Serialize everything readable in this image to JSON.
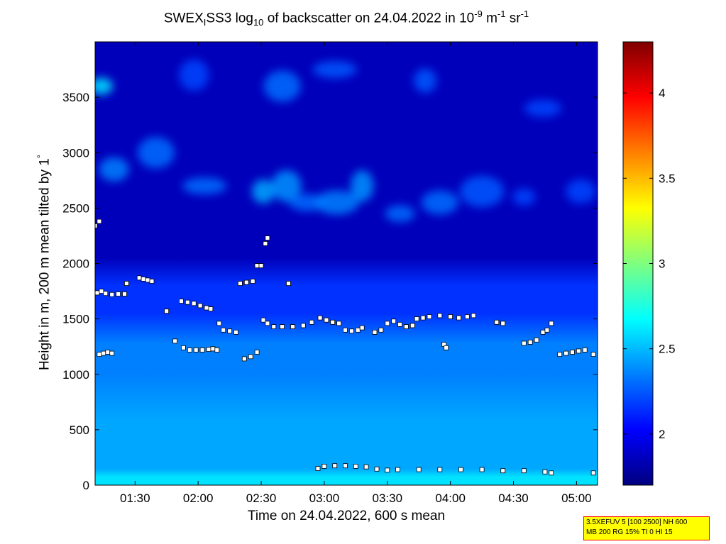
{
  "header": {
    "title_a": "SWEX",
    "title_sub1": "I",
    "title_b": "SS3 log",
    "title_sub2": "10",
    "title_c": " of backscatter on 24.04.2022 in 10",
    "title_sup1": "-9",
    "title_d": " m",
    "title_sup2": "-1",
    "title_e": " sr",
    "title_sup3": "-1"
  },
  "axes": {
    "ylabel_a": "Height in m, 200 m mean tilted by 1",
    "ylabel_deg": "°",
    "xlabel": "Time on 24.04.2022, 600 s mean"
  },
  "info_box": {
    "line1": "3.5XEFUV 5 [100 2500] NH 600",
    "line2": "MB 200 RG 15% TI 0 HI 15"
  },
  "colors": {
    "colormap": "jet",
    "frame": "#000000",
    "info_bg": "#ffff00",
    "info_border": "#ff0000"
  },
  "chart_data": {
    "type": "heatmap",
    "title": "SWEXISS3 log10 of backscatter on 24.04.2022 in 10-9 m-1 sr-1",
    "xlabel": "Time on 24.04.2022, 600 s mean",
    "ylabel": "Height in m, 200 m mean tilted by 1°",
    "xlim": [
      "01:11",
      "05:10"
    ],
    "ylim": [
      0,
      4000
    ],
    "x_ticks": [
      "01:30",
      "02:00",
      "02:30",
      "03:00",
      "03:30",
      "04:00",
      "04:30",
      "05:00"
    ],
    "y_ticks": [
      0,
      500,
      1000,
      1500,
      2000,
      2500,
      3000,
      3500
    ],
    "colorbar": {
      "min": 1.7,
      "max": 4.3,
      "ticks": [
        2,
        2.5,
        3,
        3.5,
        4
      ]
    },
    "background_bands": [
      {
        "from_m": 0,
        "to_m": 150,
        "log10_backscatter": 2.6
      },
      {
        "from_m": 150,
        "to_m": 1000,
        "log10_backscatter": 2.45
      },
      {
        "from_m": 1000,
        "to_m": 1550,
        "log10_backscatter": 2.35
      },
      {
        "from_m": 1550,
        "to_m": 2050,
        "log10_backscatter": 2.15
      },
      {
        "from_m": 2050,
        "to_m": 4000,
        "log10_backscatter": 1.85
      }
    ],
    "aerosol_patches": [
      {
        "time": "01:14",
        "height": 3600,
        "value": 2.6
      },
      {
        "time": "01:20",
        "height": 2850,
        "value": 2.35
      },
      {
        "time": "01:40",
        "height": 3000,
        "value": 2.3
      },
      {
        "time": "02:03",
        "height": 2700,
        "value": 2.3
      },
      {
        "time": "02:31",
        "height": 2650,
        "value": 2.45
      },
      {
        "time": "02:42",
        "height": 2700,
        "value": 2.4
      },
      {
        "time": "02:52",
        "height": 2550,
        "value": 2.3
      },
      {
        "time": "03:06",
        "height": 2550,
        "value": 2.35
      },
      {
        "time": "03:18",
        "height": 2700,
        "value": 2.4
      },
      {
        "time": "03:36",
        "height": 2450,
        "value": 2.3
      },
      {
        "time": "03:55",
        "height": 2550,
        "value": 2.3
      },
      {
        "time": "04:15",
        "height": 2650,
        "value": 2.25
      },
      {
        "time": "04:35",
        "height": 2600,
        "value": 2.2
      },
      {
        "time": "05:02",
        "height": 2650,
        "value": 2.2
      },
      {
        "time": "02:40",
        "height": 3600,
        "value": 2.3
      },
      {
        "time": "03:05",
        "height": 3750,
        "value": 2.25
      },
      {
        "time": "03:48",
        "height": 3650,
        "value": 2.25
      },
      {
        "time": "01:58",
        "height": 3700,
        "value": 2.2
      },
      {
        "time": "04:44",
        "height": 3400,
        "value": 2.2
      }
    ],
    "series": [
      {
        "marker": "square",
        "points": [
          [
            "01:12",
            1735
          ],
          [
            "01:14",
            1750
          ],
          [
            "01:16",
            1730
          ],
          [
            "01:19",
            1720
          ],
          [
            "01:22",
            1725
          ],
          [
            "01:25",
            1725
          ],
          [
            "01:13",
            1180
          ],
          [
            "01:15",
            1190
          ],
          [
            "01:17",
            1200
          ],
          [
            "01:19",
            1190
          ],
          [
            "01:11",
            2340
          ],
          [
            "01:13",
            2380
          ],
          [
            "01:26",
            1820
          ],
          [
            "01:32",
            1870
          ],
          [
            "01:34",
            1860
          ],
          [
            "01:36",
            1850
          ],
          [
            "01:38",
            1840
          ],
          [
            "01:45",
            1570
          ],
          [
            "01:49",
            1300
          ],
          [
            "01:53",
            1240
          ],
          [
            "01:56",
            1220
          ],
          [
            "01:59",
            1220
          ],
          [
            "02:02",
            1220
          ],
          [
            "02:05",
            1225
          ],
          [
            "02:07",
            1230
          ],
          [
            "02:09",
            1220
          ],
          [
            "01:52",
            1660
          ],
          [
            "01:55",
            1650
          ],
          [
            "01:58",
            1640
          ],
          [
            "02:01",
            1620
          ],
          [
            "02:04",
            1600
          ],
          [
            "02:06",
            1590
          ],
          [
            "02:10",
            1460
          ],
          [
            "02:12",
            1400
          ],
          [
            "02:15",
            1390
          ],
          [
            "02:18",
            1380
          ],
          [
            "02:20",
            1820
          ],
          [
            "02:23",
            1830
          ],
          [
            "02:26",
            1840
          ],
          [
            "02:28",
            1980
          ],
          [
            "02:30",
            1980
          ],
          [
            "02:22",
            1140
          ],
          [
            "02:25",
            1160
          ],
          [
            "02:28",
            1200
          ],
          [
            "02:31",
            1490
          ],
          [
            "02:33",
            1460
          ],
          [
            "02:36",
            1430
          ],
          [
            "02:40",
            1430
          ],
          [
            "02:45",
            1430
          ],
          [
            "02:50",
            1440
          ],
          [
            "02:54",
            1470
          ],
          [
            "02:32",
            2180
          ],
          [
            "02:33",
            2230
          ],
          [
            "02:43",
            1820
          ],
          [
            "02:58",
            1510
          ],
          [
            "03:01",
            1490
          ],
          [
            "03:04",
            1470
          ],
          [
            "03:07",
            1460
          ],
          [
            "03:10",
            1400
          ],
          [
            "03:13",
            1390
          ],
          [
            "03:16",
            1400
          ],
          [
            "03:18",
            1420
          ],
          [
            "03:24",
            1380
          ],
          [
            "03:27",
            1400
          ],
          [
            "03:30",
            1460
          ],
          [
            "03:33",
            1480
          ],
          [
            "03:36",
            1450
          ],
          [
            "03:39",
            1430
          ],
          [
            "03:42",
            1440
          ],
          [
            "03:44",
            1500
          ],
          [
            "03:47",
            1510
          ],
          [
            "03:50",
            1520
          ],
          [
            "03:55",
            1530
          ],
          [
            "03:57",
            1270
          ],
          [
            "03:58",
            1240
          ],
          [
            "04:00",
            1520
          ],
          [
            "04:04",
            1510
          ],
          [
            "04:08",
            1520
          ],
          [
            "04:11",
            1530
          ],
          [
            "04:22",
            1470
          ],
          [
            "04:25",
            1460
          ],
          [
            "04:35",
            1280
          ],
          [
            "04:38",
            1290
          ],
          [
            "04:41",
            1310
          ],
          [
            "04:44",
            1380
          ],
          [
            "04:46",
            1400
          ],
          [
            "04:48",
            1460
          ],
          [
            "04:52",
            1180
          ],
          [
            "04:55",
            1190
          ],
          [
            "04:58",
            1200
          ],
          [
            "05:01",
            1210
          ],
          [
            "05:04",
            1220
          ],
          [
            "05:08",
            1180
          ],
          [
            "02:57",
            150
          ],
          [
            "03:00",
            170
          ],
          [
            "03:05",
            175
          ],
          [
            "03:10",
            175
          ],
          [
            "03:15",
            170
          ],
          [
            "03:20",
            165
          ],
          [
            "03:25",
            145
          ],
          [
            "03:30",
            135
          ],
          [
            "03:35",
            140
          ],
          [
            "03:45",
            140
          ],
          [
            "03:55",
            140
          ],
          [
            "04:05",
            140
          ],
          [
            "04:15",
            140
          ],
          [
            "04:25",
            130
          ],
          [
            "04:35",
            130
          ],
          [
            "04:45",
            120
          ],
          [
            "04:48",
            110
          ],
          [
            "05:08",
            110
          ]
        ]
      }
    ]
  }
}
